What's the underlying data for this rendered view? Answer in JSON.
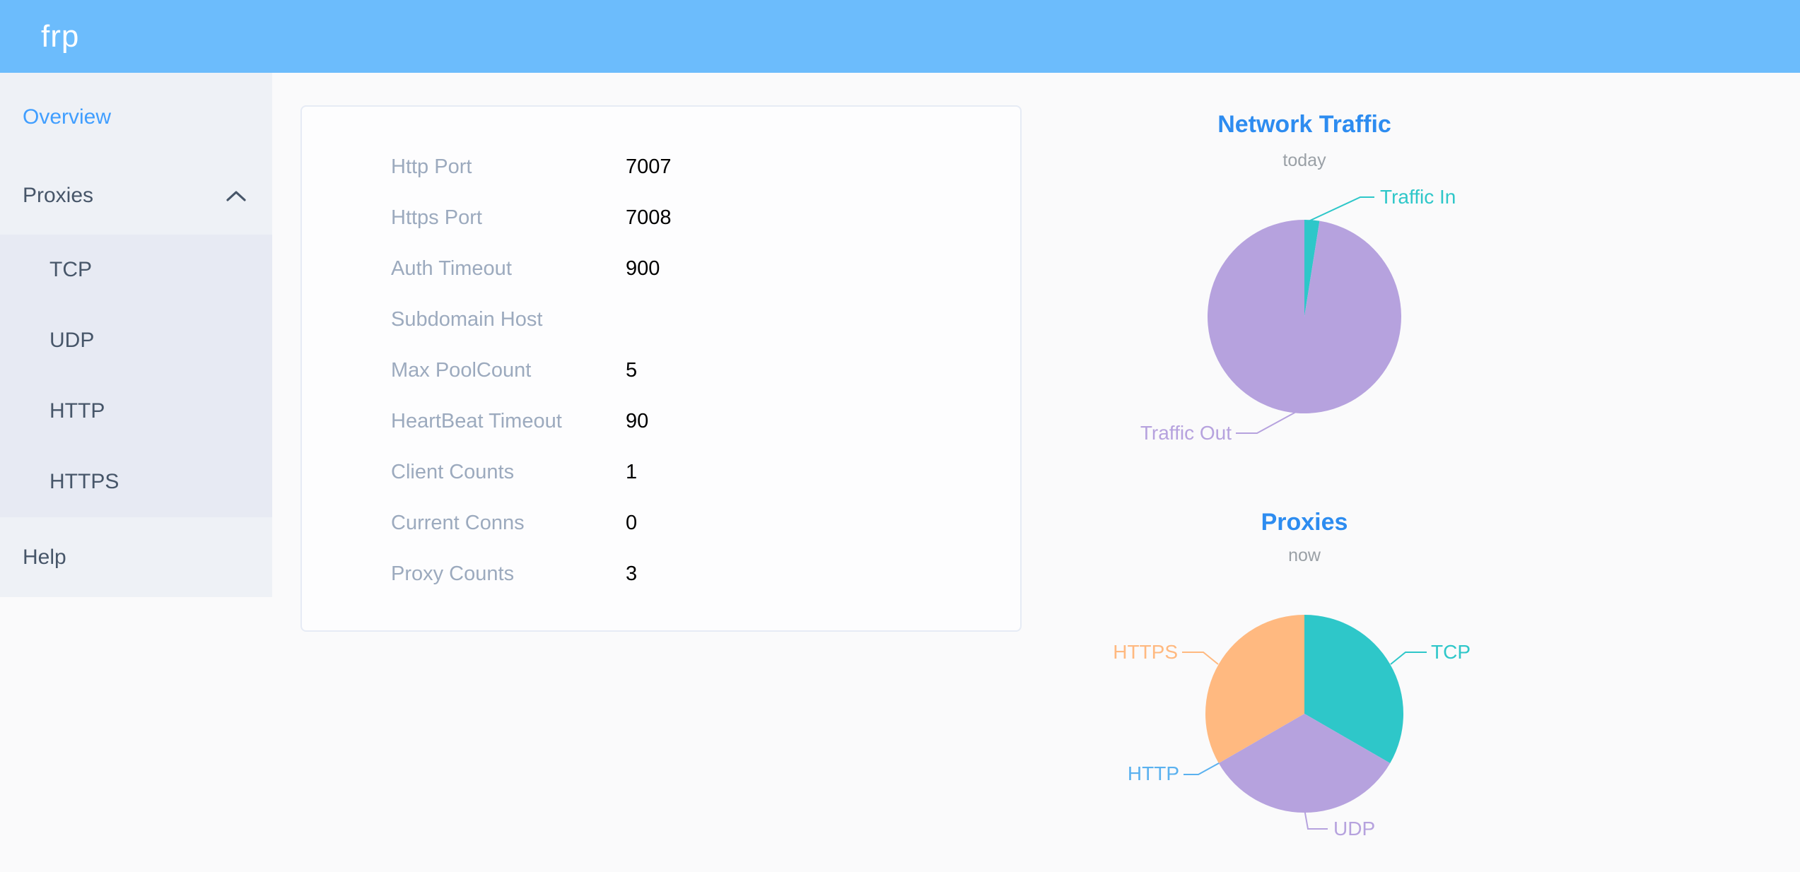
{
  "app": {
    "logo": "frp"
  },
  "sidebar": {
    "items": [
      {
        "label": "Overview",
        "active": true
      },
      {
        "label": "Proxies",
        "expanded": true,
        "children": [
          "TCP",
          "UDP",
          "HTTP",
          "HTTPS"
        ]
      },
      {
        "label": "Help"
      }
    ]
  },
  "overview": {
    "rows": [
      {
        "label": "Http Port",
        "value": "7007"
      },
      {
        "label": "Https Port",
        "value": "7008"
      },
      {
        "label": "Auth Timeout",
        "value": "900"
      },
      {
        "label": "Subdomain Host",
        "value": ""
      },
      {
        "label": "Max PoolCount",
        "value": "5"
      },
      {
        "label": "HeartBeat Timeout",
        "value": "90"
      },
      {
        "label": "Client Counts",
        "value": "1"
      },
      {
        "label": "Current Conns",
        "value": "0"
      },
      {
        "label": "Proxy Counts",
        "value": "3"
      }
    ]
  },
  "chart_data": [
    {
      "type": "pie",
      "title": "Network Traffic",
      "subtitle": "today",
      "legend_position": "none",
      "start_angle": "top",
      "clockwise": true,
      "values_are_estimated_percent": true,
      "series": [
        {
          "name": "Traffic In",
          "value": 2.5,
          "color": "#2ec7c9"
        },
        {
          "name": "Traffic Out",
          "value": 97.5,
          "color": "#b6a2de"
        }
      ]
    },
    {
      "type": "pie",
      "title": "Proxies",
      "subtitle": "now",
      "legend_position": "none",
      "start_angle": "top",
      "clockwise": true,
      "series": [
        {
          "name": "TCP",
          "value": 1,
          "color": "#2ec7c9"
        },
        {
          "name": "UDP",
          "value": 1,
          "color": "#b6a2de"
        },
        {
          "name": "HTTP",
          "value": 0,
          "color": "#5ab1ef"
        },
        {
          "name": "HTTPS",
          "value": 1,
          "color": "#ffb980"
        }
      ]
    }
  ],
  "colors": {
    "header_bg": "#6cbcfc",
    "sidebar_bg": "#eef1f6",
    "submenu_bg": "#e7eaf3",
    "active_item": "#409eff",
    "item_text": "#475669",
    "page_bg": "#fafafb",
    "card_border": "#e6ebf5",
    "config_label": "#9caabe",
    "chart_title": "#2d8cf0",
    "chart_subtitle": "#9aa0a6",
    "teal": "#2ec7c9",
    "purple": "#b6a2de",
    "blue": "#5ab1ef",
    "orange": "#ffb980"
  }
}
